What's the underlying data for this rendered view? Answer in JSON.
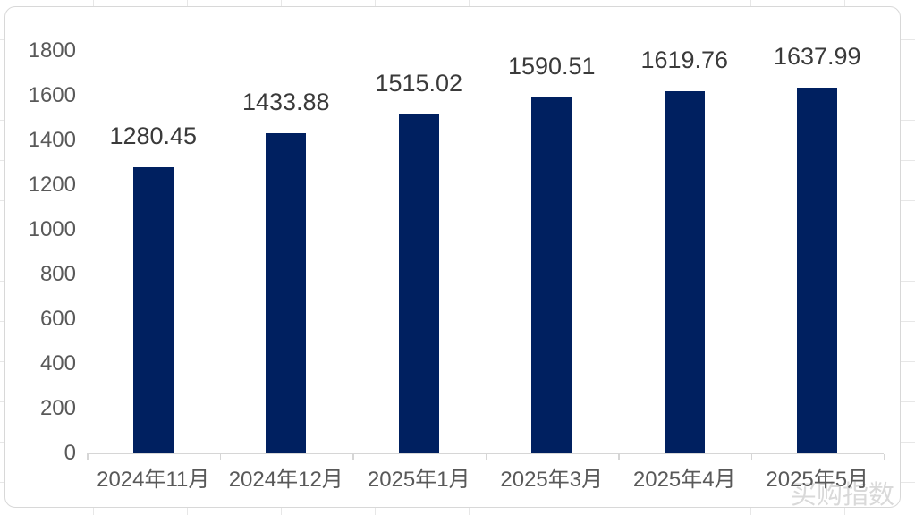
{
  "chart_data": {
    "type": "bar",
    "categories": [
      "2024年11月",
      "2024年12月",
      "2025年1月",
      "2025年3月",
      "2025年4月",
      "2025年5月"
    ],
    "values": [
      1280.45,
      1433.88,
      1515.02,
      1590.51,
      1619.76,
      1637.99
    ],
    "data_labels": [
      "1280.45",
      "1433.88",
      "1515.02",
      "1590.51",
      "1619.76",
      "1637.99"
    ],
    "title": "",
    "xlabel": "",
    "ylabel": "",
    "ylim": [
      0,
      1800
    ],
    "ytick_step": 200,
    "yticks": [
      1800,
      1600,
      1400,
      1200,
      1000,
      800,
      600,
      400,
      200,
      0
    ],
    "grid": "off",
    "legend": "none",
    "bar_color": "#002060",
    "data_label_color": "#3a3a3a",
    "axis_label_color": "#595959",
    "axis_line_color": "#d6d6d6"
  },
  "watermark": {
    "text": "买购指数",
    "color": "#d9d9d9"
  },
  "panel": {
    "background": "#ffffff",
    "border_color": "#d8d8d8"
  }
}
